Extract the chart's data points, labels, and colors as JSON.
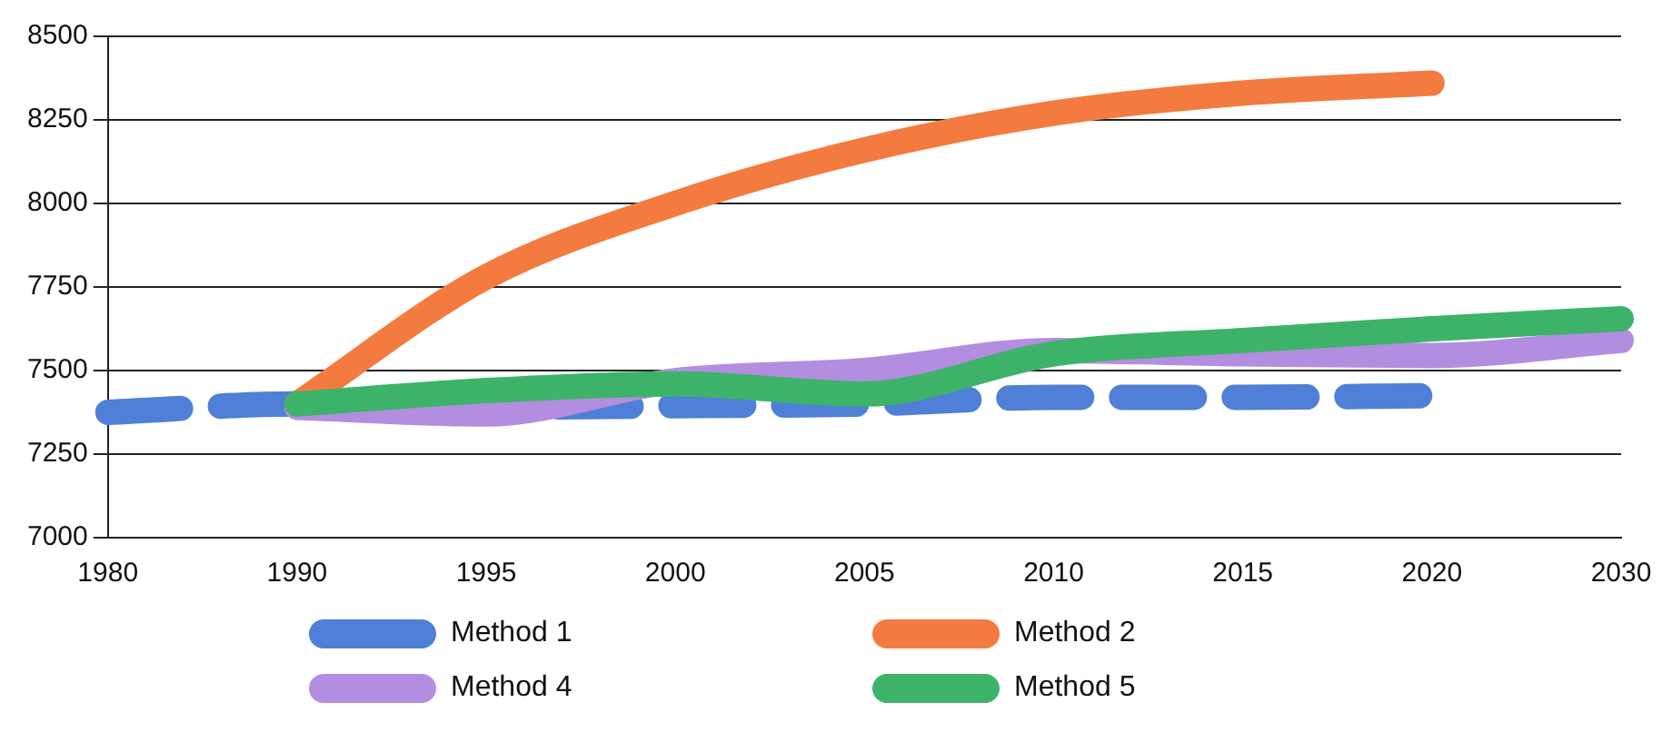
{
  "chart_data": {
    "type": "line",
    "categories": [
      "1980",
      "1990",
      "1995",
      "2000",
      "2005",
      "2010",
      "2015",
      "2020",
      "2030"
    ],
    "ylim": [
      7000,
      8500
    ],
    "yticks": [
      7000,
      7250,
      7500,
      7750,
      8000,
      8250,
      8500
    ],
    "grid": "y",
    "legend": "bottom",
    "marker": "none",
    "series": [
      {
        "name": "Method 1",
        "color": "#4f7fd6",
        "line_style": "dashed",
        "values": [
          7375,
          7400,
          7390,
          7395,
          7400,
          7420,
          7420,
          7425,
          null
        ]
      },
      {
        "name": "Method 2",
        "color": "#f47b3f",
        "values": [
          null,
          7400,
          7780,
          8000,
          8160,
          8270,
          8330,
          8360,
          null
        ]
      },
      {
        "name": "Method 4",
        "color": "#b38de0",
        "values": [
          null,
          7390,
          7370,
          7470,
          7500,
          7560,
          7550,
          7545,
          7590
        ]
      },
      {
        "name": "Method 5",
        "color": "#3db36a",
        "values": [
          null,
          7400,
          7440,
          7460,
          7430,
          7550,
          7590,
          7625,
          7655
        ]
      }
    ]
  }
}
